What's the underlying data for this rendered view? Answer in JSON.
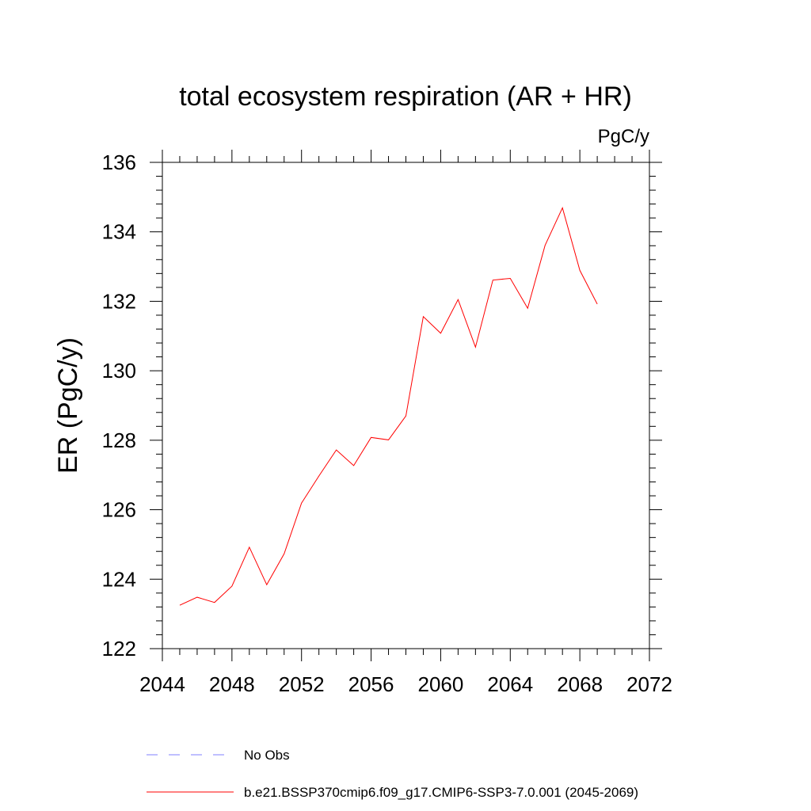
{
  "chart_data": {
    "type": "line",
    "title": "total ecosystem respiration (AR + HR)",
    "units": "PgC/y",
    "ylabel": "ER  (PgC/y)",
    "xlabel": "",
    "xlim": [
      2044,
      2072
    ],
    "ylim": [
      122,
      136
    ],
    "x_ticks": [
      "2044",
      "2048",
      "2052",
      "2056",
      "2060",
      "2064",
      "2068",
      "2072"
    ],
    "y_ticks": [
      "122",
      "124",
      "126",
      "128",
      "130",
      "132",
      "134",
      "136"
    ],
    "grid": false,
    "legend_position": "bottom",
    "legend": [
      {
        "label": "No Obs",
        "color": "#7f7fff",
        "style": "dashed"
      },
      {
        "label": "b.e21.BSSP370cmip6.f09_g17.CMIP6-SSP3-7.0.001 (2045-2069)",
        "color": "#ff0000",
        "style": "solid"
      }
    ],
    "x": [
      2045,
      2046,
      2047,
      2048,
      2049,
      2050,
      2051,
      2052,
      2053,
      2054,
      2055,
      2056,
      2057,
      2058,
      2059,
      2060,
      2061,
      2062,
      2063,
      2064,
      2065,
      2066,
      2067,
      2068,
      2069
    ],
    "series": [
      {
        "color": "#ff0000",
        "values": [
          123.25,
          123.48,
          123.33,
          123.8,
          124.92,
          123.84,
          124.73,
          126.19,
          126.97,
          127.72,
          127.27,
          128.08,
          128.01,
          128.7,
          131.56,
          131.08,
          132.05,
          130.68,
          132.61,
          132.66,
          131.8,
          133.61,
          134.69,
          132.89,
          131.92
        ]
      }
    ]
  }
}
